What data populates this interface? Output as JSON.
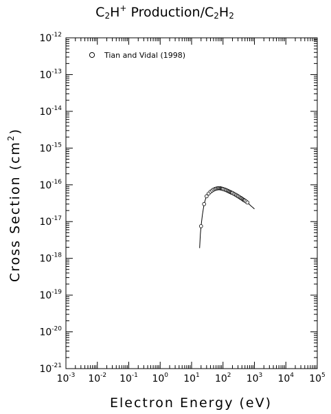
{
  "chart_data": {
    "type": "scatter",
    "title": {
      "parts": [
        {
          "text": "C",
          "sub": false
        },
        {
          "text": "2",
          "sub": true
        },
        {
          "text": "H",
          "sub": false
        },
        {
          "text": "+",
          "sup": true
        },
        {
          "text": " Production/C",
          "sub": false
        },
        {
          "text": "2",
          "sub": true
        },
        {
          "text": "H",
          "sub": false
        },
        {
          "text": "2",
          "sub": true
        }
      ]
    },
    "xlabel": "Electron Energy (eV)",
    "ylabel": {
      "main": "Cross Section (cm",
      "sup": "2",
      "close": ")"
    },
    "xscale": "log",
    "yscale": "log",
    "xlim": [
      0.001,
      100000
    ],
    "ylim": [
      1e-21,
      1e-12
    ],
    "x_ticks": [
      {
        "base": "10",
        "exp": "-3"
      },
      {
        "base": "10",
        "exp": "-2"
      },
      {
        "base": "10",
        "exp": "-1"
      },
      {
        "base": "10",
        "exp": "0"
      },
      {
        "base": "10",
        "exp": "1"
      },
      {
        "base": "10",
        "exp": "2"
      },
      {
        "base": "10",
        "exp": "3"
      },
      {
        "base": "10",
        "exp": "4"
      },
      {
        "base": "10",
        "exp": "5"
      }
    ],
    "y_ticks": [
      {
        "base": "10",
        "exp": "-21"
      },
      {
        "base": "10",
        "exp": "-20"
      },
      {
        "base": "10",
        "exp": "-19"
      },
      {
        "base": "10",
        "exp": "-18"
      },
      {
        "base": "10",
        "exp": "-17"
      },
      {
        "base": "10",
        "exp": "-16"
      },
      {
        "base": "10",
        "exp": "-15"
      },
      {
        "base": "10",
        "exp": "-14"
      },
      {
        "base": "10",
        "exp": "-13"
      },
      {
        "base": "10",
        "exp": "-12"
      }
    ],
    "legend": {
      "placement": "top-left",
      "marker": "circle",
      "label": "Tian and Vidal (1998)"
    },
    "series": [
      {
        "name": "Tian and Vidal (1998)",
        "marker": "circle",
        "x": [
          20,
          25,
          30,
          35,
          40,
          45,
          50,
          55,
          60,
          65,
          70,
          75,
          80,
          85,
          90,
          95,
          100,
          110,
          120,
          130,
          140,
          150,
          160,
          170,
          180,
          190,
          200,
          220,
          240,
          260,
          280,
          300,
          325,
          350,
          375,
          400,
          425,
          450,
          475,
          500,
          550,
          600
        ],
        "y": [
          7.5e-18,
          3e-17,
          4.9e-17,
          5.8e-17,
          6.5e-17,
          7e-17,
          7.4e-17,
          7.7e-17,
          7.9e-17,
          8e-17,
          8.1e-17,
          8.1e-17,
          8.1e-17,
          8e-17,
          7.9e-17,
          7.8e-17,
          7.7e-17,
          7.5e-17,
          7.3e-17,
          7.1e-17,
          6.9e-17,
          6.7e-17,
          6.5e-17,
          6.4e-17,
          6.2e-17,
          6.1e-17,
          6e-17,
          5.7e-17,
          5.5e-17,
          5.3e-17,
          5.1e-17,
          4.9e-17,
          4.7e-17,
          4.5e-17,
          4.35e-17,
          4.2e-17,
          4.05e-17,
          3.9e-17,
          3.8e-17,
          3.7e-17,
          3.5e-17,
          3.3e-17
        ]
      },
      {
        "name": "",
        "style": "line",
        "x": [
          18,
          19,
          20,
          22,
          25,
          28,
          30,
          35,
          40,
          50,
          60,
          70,
          80,
          90,
          100,
          120,
          150,
          200,
          300,
          400,
          500,
          600,
          700,
          800,
          900,
          1000
        ],
        "y": [
          1.9e-18,
          4.5e-18,
          7.5e-18,
          1.5e-17,
          3e-17,
          4.2e-17,
          4.9e-17,
          5.8e-17,
          6.5e-17,
          7.4e-17,
          7.9e-17,
          8.1e-17,
          8.1e-17,
          7.9e-17,
          7.7e-17,
          7.3e-17,
          6.7e-17,
          6e-17,
          4.9e-17,
          4.2e-17,
          3.7e-17,
          3.3e-17,
          2.9e-17,
          2.6e-17,
          2.4e-17,
          2.2e-17
        ]
      }
    ],
    "grid": false
  }
}
